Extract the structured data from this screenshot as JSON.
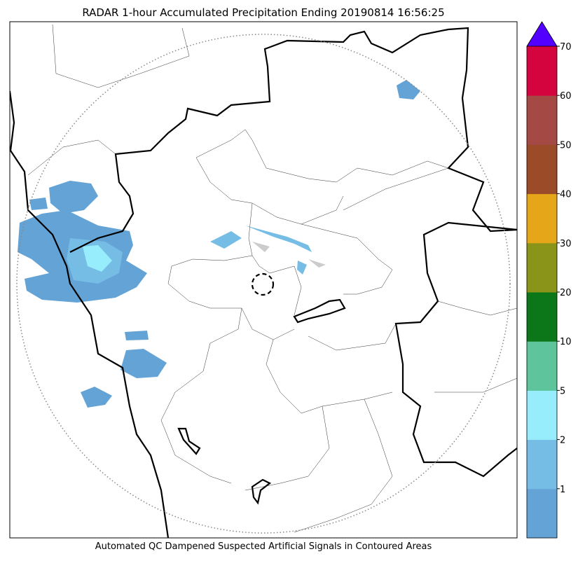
{
  "title": "RADAR 1-hour Accumulated Precipitation Ending 20190814 16:56:25",
  "caption": "Automated QC Dampened Suspected Artificial Signals in Contoured Areas",
  "colorbar": {
    "ticks": [
      1,
      2,
      5,
      10,
      20,
      30,
      40,
      50,
      60,
      70
    ],
    "colors": [
      "#64a3d5",
      "#76bde6",
      "#97edfc",
      "#5dc49b",
      "#0b7719",
      "#8a9419",
      "#e5a719",
      "#9b4b28",
      "#a54945",
      "#d4043f"
    ],
    "extend_color": "#5200ff"
  }
}
